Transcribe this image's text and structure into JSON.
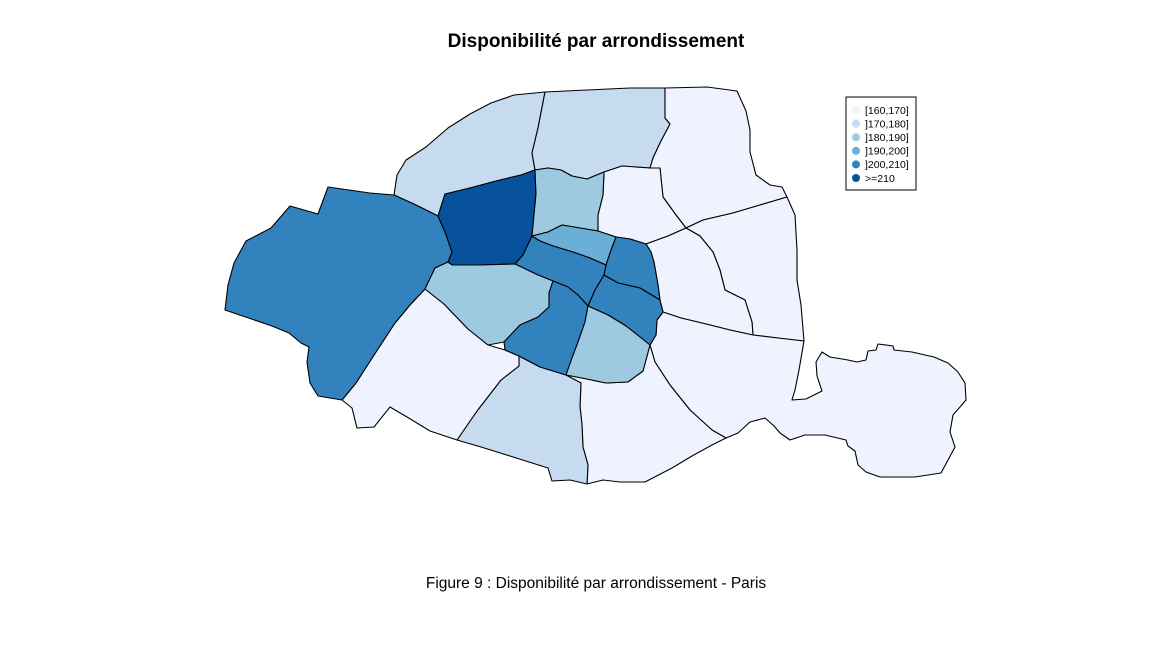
{
  "title": "Disponibilité par arrondissement",
  "caption": "Figure 9 : Disponibilité par arrondissement - Paris",
  "legend": {
    "classes": [
      {
        "label": "[160,170]",
        "color": "#eff3ff"
      },
      {
        "label": "]170,180]",
        "color": "#c6dbef"
      },
      {
        "label": "]180,190]",
        "color": "#9ecae1"
      },
      {
        "label": "]190,200]",
        "color": "#6baed6"
      },
      {
        "label": "]200,210]",
        "color": "#3182bd"
      },
      {
        "label": ">=210",
        "color": "#08519c"
      }
    ]
  },
  "arrondissements": [
    {
      "id": "1",
      "class_index": 4
    },
    {
      "id": "2",
      "class_index": 3
    },
    {
      "id": "3",
      "class_index": 4
    },
    {
      "id": "4",
      "class_index": 4
    },
    {
      "id": "5",
      "class_index": 2
    },
    {
      "id": "6",
      "class_index": 4
    },
    {
      "id": "7",
      "class_index": 2
    },
    {
      "id": "8",
      "class_index": 5
    },
    {
      "id": "9",
      "class_index": 2
    },
    {
      "id": "10",
      "class_index": 0
    },
    {
      "id": "11",
      "class_index": 0
    },
    {
      "id": "12",
      "class_index": 0
    },
    {
      "id": "13",
      "class_index": 0
    },
    {
      "id": "14",
      "class_index": 1
    },
    {
      "id": "15",
      "class_index": 0
    },
    {
      "id": "16",
      "class_index": 4
    },
    {
      "id": "17",
      "class_index": 1
    },
    {
      "id": "18",
      "class_index": 1
    },
    {
      "id": "19",
      "class_index": 0
    },
    {
      "id": "20",
      "class_index": 0
    }
  ]
}
